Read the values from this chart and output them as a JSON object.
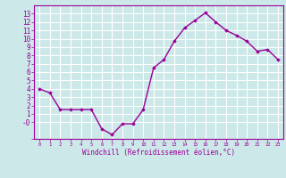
{
  "x": [
    0,
    1,
    2,
    3,
    4,
    5,
    6,
    7,
    8,
    9,
    10,
    11,
    12,
    13,
    14,
    15,
    16,
    17,
    18,
    19,
    20,
    21,
    22,
    23
  ],
  "y": [
    4.0,
    3.5,
    1.5,
    1.5,
    1.5,
    1.5,
    -0.8,
    -1.5,
    -0.2,
    -0.2,
    1.5,
    6.5,
    7.5,
    9.7,
    11.3,
    12.2,
    13.1,
    12.0,
    11.0,
    10.4,
    9.7,
    8.5,
    8.7,
    7.5
  ],
  "line_color": "#990099",
  "marker": "D",
  "marker_size": 1.8,
  "bg_color": "#cce8e8",
  "grid_color": "#ffffff",
  "xlabel": "Windchill (Refroidissement éolien,°C)",
  "ylim": [
    -2,
    14
  ],
  "xlim": [
    -0.5,
    23.5
  ],
  "ytick_labels": [
    "",
    "-0",
    "1",
    "2",
    "3",
    "4",
    "5",
    "6",
    "7",
    "8",
    "9",
    "10",
    "11",
    "12",
    "13"
  ],
  "ytick_vals": [
    -2,
    0,
    1,
    2,
    3,
    4,
    5,
    6,
    7,
    8,
    9,
    10,
    11,
    12,
    13
  ],
  "xticks": [
    0,
    1,
    2,
    3,
    4,
    5,
    6,
    7,
    8,
    9,
    10,
    11,
    12,
    13,
    14,
    15,
    16,
    17,
    18,
    19,
    20,
    21,
    22,
    23
  ],
  "tick_color": "#990099",
  "label_color": "#990099",
  "line_width": 1.0
}
